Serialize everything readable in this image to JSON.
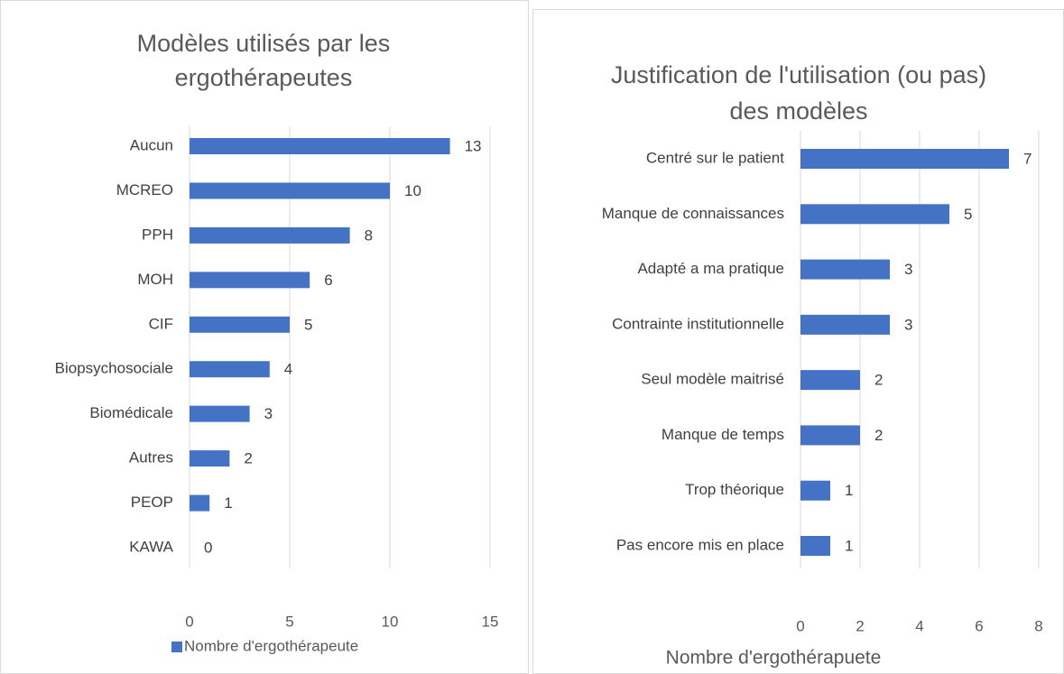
{
  "chart_data": [
    {
      "type": "bar",
      "orientation": "horizontal",
      "title": [
        "Modèles utilisés par les",
        "ergothérapeutes"
      ],
      "categories": [
        "Aucun",
        "MCREO",
        "PPH",
        "MOH",
        "CIF",
        "Biopsychosociale",
        "Biomédicale",
        "Autres",
        "PEOP",
        "KAWA"
      ],
      "series": [
        {
          "name": "Nombre d'ergothérapeute",
          "color": "#4472c4",
          "values": [
            13,
            10,
            8,
            6,
            5,
            4,
            3,
            2,
            1,
            0
          ]
        }
      ],
      "xlim": [
        0,
        15
      ],
      "xticks": [
        0,
        5,
        10,
        15
      ],
      "grid": true,
      "legend": "bottom"
    },
    {
      "type": "bar",
      "orientation": "horizontal",
      "title": [
        "Justification de l'utilisation (ou pas)",
        "des modèles"
      ],
      "categories": [
        "Centré sur le patient",
        "Manque de connaissances",
        "Adapté a ma pratique",
        "Contrainte institutionnelle",
        "Seul modèle maitrisé",
        "Manque de temps",
        "Trop théorique",
        "Pas encore mis en place"
      ],
      "series": [
        {
          "color": "#4472c4",
          "values": [
            7,
            5,
            3,
            3,
            2,
            2,
            1,
            1
          ]
        }
      ],
      "x_label": "Nombre d'ergothérapuete",
      "xlim": [
        0,
        8
      ],
      "xticks": [
        0,
        2,
        4,
        6,
        8
      ],
      "grid": true
    }
  ]
}
